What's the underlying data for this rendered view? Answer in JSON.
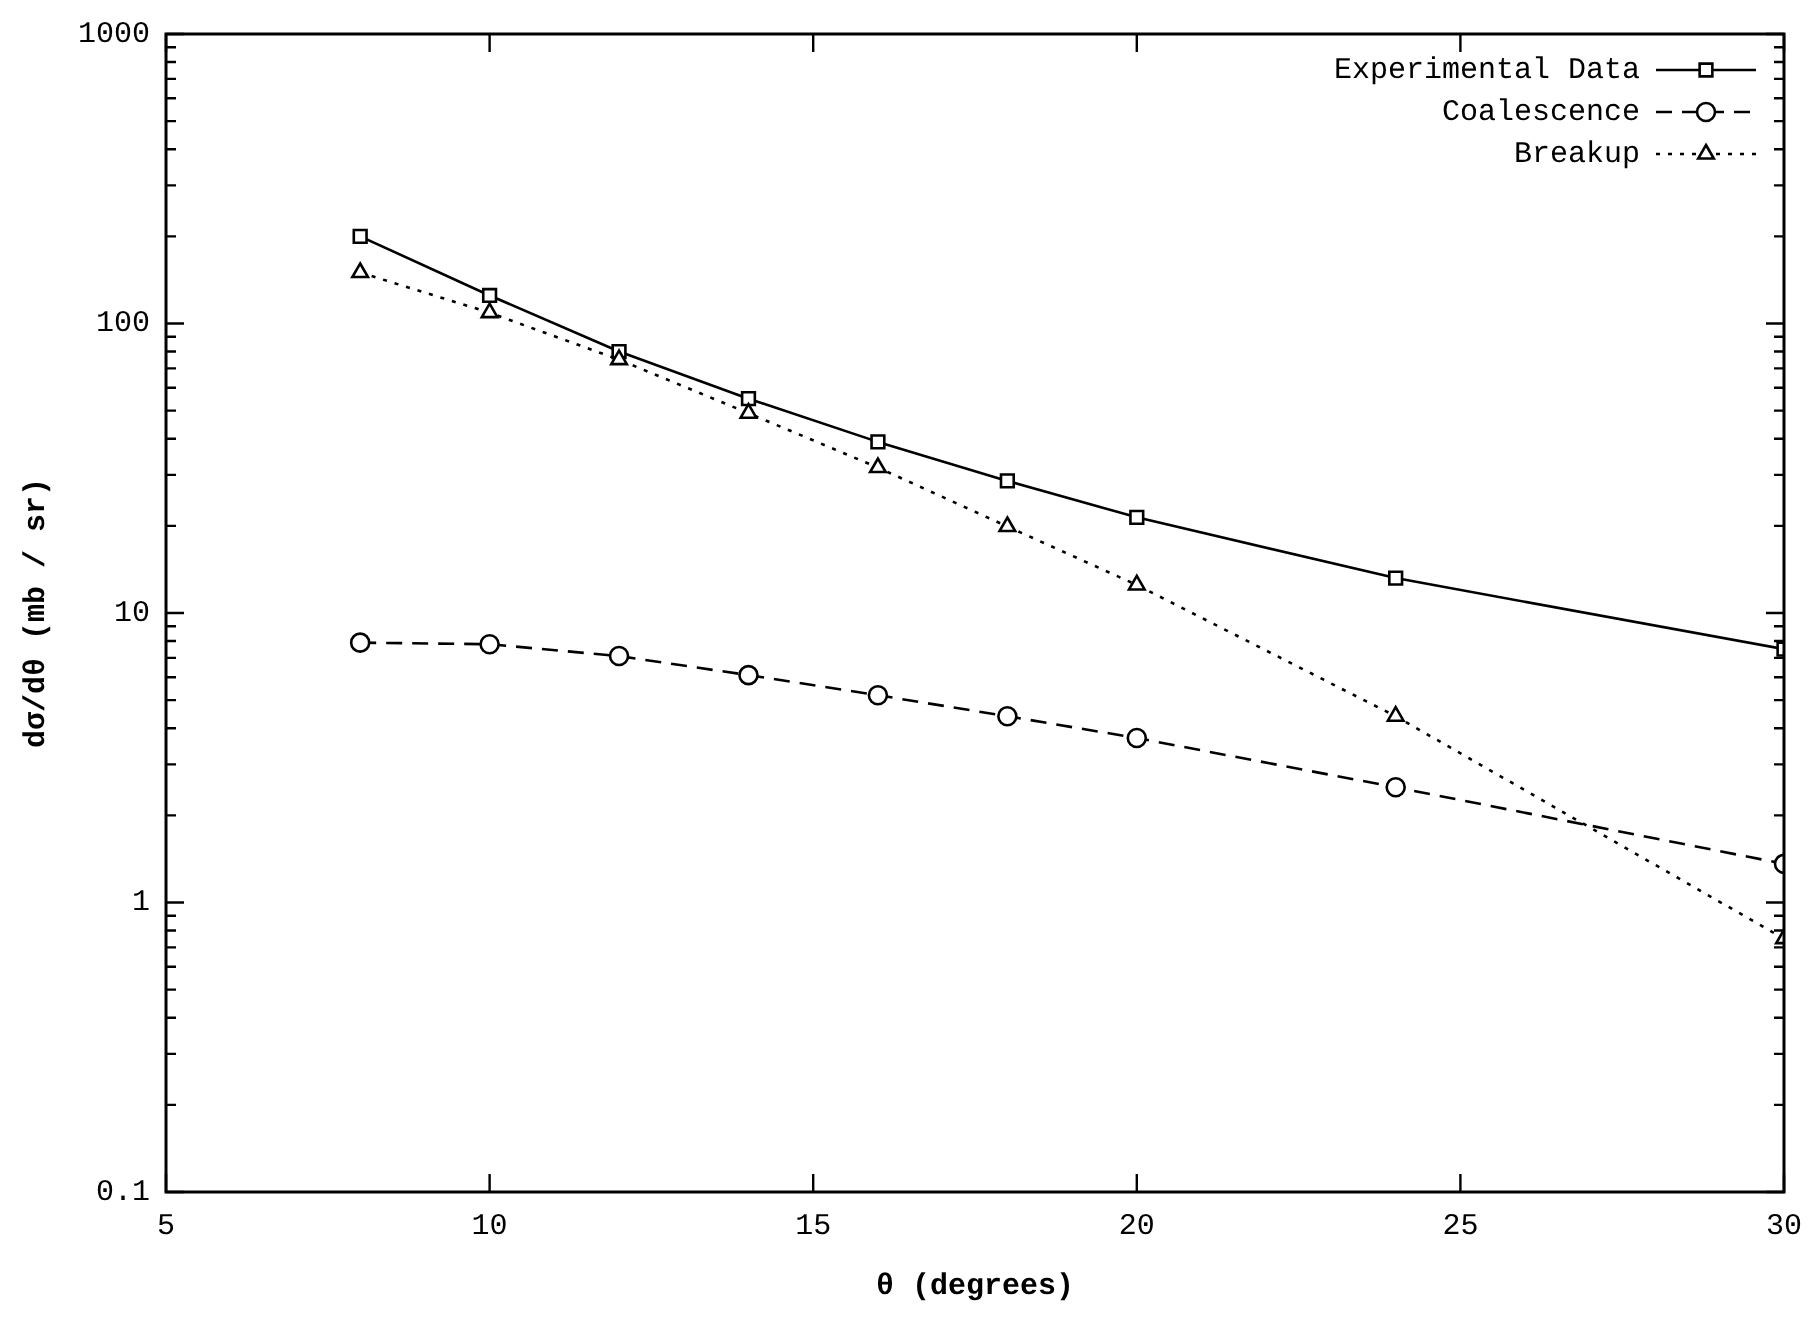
{
  "chart_data": {
    "type": "line",
    "xlabel": "θ (degrees)",
    "ylabel": "dσ/dθ (mb / sr)",
    "log": "y",
    "xlim": [
      5,
      30
    ],
    "xticks": [
      5,
      10,
      15,
      20,
      25,
      30
    ],
    "ylim": [
      0.1,
      1000
    ],
    "yticks": [
      0.1,
      {
        "value": 0.2,
        "label": null
      },
      {
        "value": 0.3,
        "label": null
      },
      {
        "value": 0.4,
        "label": null
      },
      {
        "value": 0.5,
        "label": null
      },
      {
        "value": 0.6,
        "label": null
      },
      {
        "value": 0.7,
        "label": null
      },
      {
        "value": 0.8,
        "label": null
      },
      {
        "value": 0.9,
        "label": null
      },
      1,
      {
        "value": 2,
        "label": null
      },
      {
        "value": 3,
        "label": null
      },
      {
        "value": 4,
        "label": null
      },
      {
        "value": 5,
        "label": null
      },
      {
        "value": 6,
        "label": null
      },
      {
        "value": 7,
        "label": null
      },
      {
        "value": 8,
        "label": null
      },
      {
        "value": 9,
        "label": null
      },
      10,
      {
        "value": 20,
        "label": null
      },
      {
        "value": 30,
        "label": null
      },
      {
        "value": 40,
        "label": null
      },
      {
        "value": 50,
        "label": null
      },
      {
        "value": 60,
        "label": null
      },
      {
        "value": 70,
        "label": null
      },
      {
        "value": 80,
        "label": null
      },
      {
        "value": 90,
        "label": null
      },
      100,
      {
        "value": 200,
        "label": null
      },
      {
        "value": 300,
        "label": null
      },
      {
        "value": 400,
        "label": null
      },
      {
        "value": 500,
        "label": null
      },
      {
        "value": 600,
        "label": null
      },
      {
        "value": 700,
        "label": null
      },
      {
        "value": 800,
        "label": null
      },
      {
        "value": 900,
        "label": null
      },
      1000
    ],
    "grid": false,
    "legend": "top right",
    "x": [
      8,
      10,
      12,
      14,
      16,
      18,
      20,
      24,
      30
    ],
    "series": [
      {
        "name": "Experimental Data",
        "color": "#000000",
        "marker": "square",
        "line_style": "solid",
        "values": [
          200,
          125,
          80,
          55,
          39,
          28.6,
          21.4,
          13.2,
          7.5
        ]
      },
      {
        "name": "Coalescence",
        "color": "#000000",
        "marker": "circle",
        "line_style": "dashed",
        "values": [
          7.9,
          7.8,
          7.1,
          6.1,
          5.2,
          4.4,
          3.7,
          2.5,
          1.36
        ]
      },
      {
        "name": "Breakup",
        "color": "#000000",
        "marker": "triangle",
        "line_style": "dotted",
        "values": [
          150,
          109,
          75,
          49,
          31.8,
          19.9,
          12.5,
          4.4,
          0.75
        ]
      }
    ]
  }
}
